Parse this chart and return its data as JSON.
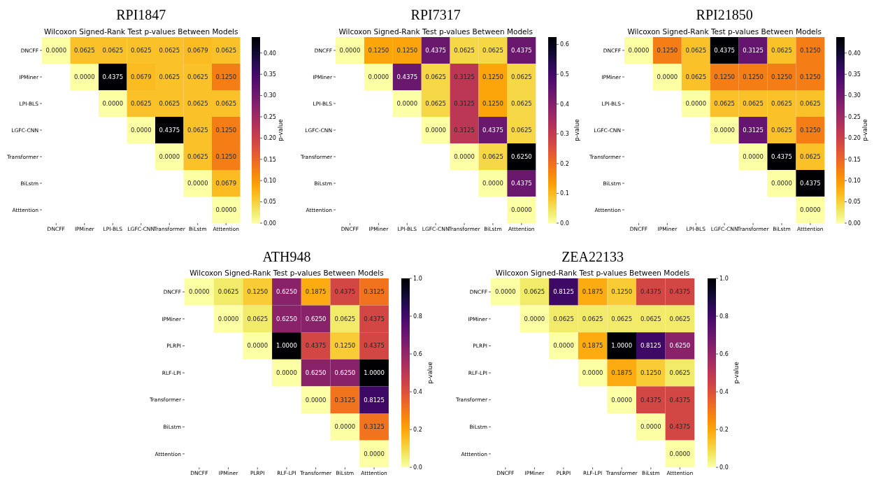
{
  "chart_data": [
    {
      "type": "heatmap",
      "title": "RPI1847",
      "subtitle": "Wilcoxon Signed-Rank Test p-values Between Models",
      "clabel": "p-value",
      "categories": [
        "DNCFF",
        "IPMiner",
        "LPI-BLS",
        "LGFC-CNN",
        "Transformer",
        "BiLstm",
        "Atttention"
      ],
      "y_categories": [
        "DNCFF",
        "IPMiner",
        "LPI-BLS",
        "LGFC-CNN",
        "Transformer",
        "BiLstm",
        "Atttention"
      ],
      "cells": [
        [
          0,
          0.0625,
          0.0625,
          0.0625,
          0.0625,
          0.0679,
          0.0625
        ],
        [
          null,
          0,
          0.4375,
          0.0679,
          0.0625,
          0.0625,
          0.125
        ],
        [
          null,
          null,
          0,
          0.0625,
          0.0625,
          0.0625,
          0.0625
        ],
        [
          null,
          null,
          null,
          0,
          0.4375,
          0.0625,
          0.125
        ],
        [
          null,
          null,
          null,
          null,
          0,
          0.0625,
          0.125
        ],
        [
          null,
          null,
          null,
          null,
          null,
          0,
          0.0679
        ],
        [
          null,
          null,
          null,
          null,
          null,
          null,
          0
        ]
      ],
      "cell_labels": [
        [
          "0.0000",
          "0.0625",
          "0.0625",
          "0.0625",
          "0.0625",
          "0.0679",
          "0.0625"
        ],
        [
          null,
          "0.0000",
          "0.4375",
          "0.0679",
          "0.0625",
          "0.0625",
          "0.1250"
        ],
        [
          null,
          null,
          "0.0000",
          "0.0625",
          "0.0625",
          "0.0625",
          "0.0625"
        ],
        [
          null,
          null,
          null,
          "0.0000",
          "0.4375",
          "0.0625",
          "0.1250"
        ],
        [
          null,
          null,
          null,
          null,
          "0.0000",
          "0.0625",
          "0.1250"
        ],
        [
          null,
          null,
          null,
          null,
          null,
          "0.0000",
          "0.0679"
        ],
        [
          null,
          null,
          null,
          null,
          null,
          null,
          "0.0000"
        ]
      ],
      "clim": [
        0,
        0.4375
      ],
      "cticks": [
        {
          "value": 0,
          "label": "0.00"
        },
        {
          "value": 0.05,
          "label": "0.05"
        },
        {
          "value": 0.1,
          "label": "0.10"
        },
        {
          "value": 0.15,
          "label": "0.15"
        },
        {
          "value": 0.2,
          "label": "0.20"
        },
        {
          "value": 0.25,
          "label": "0.25"
        },
        {
          "value": 0.3,
          "label": "0.30"
        },
        {
          "value": 0.35,
          "label": "0.35"
        },
        {
          "value": 0.4,
          "label": "0.40"
        }
      ]
    },
    {
      "type": "heatmap",
      "title": "RPI7317",
      "subtitle": "Wilcoxon Signed-Rank Test p-values Between Models",
      "clabel": "p-value",
      "categories": [
        "DNCFF",
        "IPMiner",
        "LPI-BLS",
        "LGFC-CNN",
        "Transformer",
        "BiLstm",
        "Atttention"
      ],
      "y_categories": [
        "DNCFF",
        "IPMiner",
        "LPI-BLS",
        "LGFC-CNN",
        "Transformer",
        "BiLstm",
        "Atttention"
      ],
      "cells": [
        [
          0,
          0.125,
          0.125,
          0.4375,
          0.0625,
          0.0625,
          0.4375
        ],
        [
          null,
          0,
          0.4375,
          0.0625,
          0.3125,
          0.125,
          0.0625
        ],
        [
          null,
          null,
          0,
          0.0625,
          0.3125,
          0.125,
          0.0625
        ],
        [
          null,
          null,
          null,
          0,
          0.3125,
          0.4375,
          0.0625
        ],
        [
          null,
          null,
          null,
          null,
          0,
          0.0625,
          0.625
        ],
        [
          null,
          null,
          null,
          null,
          null,
          0,
          0.4375
        ],
        [
          null,
          null,
          null,
          null,
          null,
          null,
          0
        ]
      ],
      "cell_labels": [
        [
          "0.0000",
          "0.1250",
          "0.1250",
          "0.4375",
          "0.0625",
          "0.0625",
          "0.4375"
        ],
        [
          null,
          "0.0000",
          "0.4375",
          "0.0625",
          "0.3125",
          "0.1250",
          "0.0625"
        ],
        [
          null,
          null,
          "0.0000",
          "0.0625",
          "0.3125",
          "0.1250",
          "0.0625"
        ],
        [
          null,
          null,
          null,
          "0.0000",
          "0.3125",
          "0.4375",
          "0.0625"
        ],
        [
          null,
          null,
          null,
          null,
          "0.0000",
          "0.0625",
          "0.6250"
        ],
        [
          null,
          null,
          null,
          null,
          null,
          "0.0000",
          "0.4375"
        ],
        [
          null,
          null,
          null,
          null,
          null,
          null,
          "0.0000"
        ]
      ],
      "clim": [
        0,
        0.625
      ],
      "cticks": [
        {
          "value": 0,
          "label": "0.0"
        },
        {
          "value": 0.1,
          "label": "0.1"
        },
        {
          "value": 0.2,
          "label": "0.2"
        },
        {
          "value": 0.3,
          "label": "0.3"
        },
        {
          "value": 0.4,
          "label": "0.4"
        },
        {
          "value": 0.5,
          "label": "0.5"
        },
        {
          "value": 0.6,
          "label": "0.6"
        }
      ]
    },
    {
      "type": "heatmap",
      "title": "RPI21850",
      "subtitle": "Wilcoxon Signed-Rank Test p-values Between Models",
      "clabel": "p-value",
      "categories": [
        "DNCFF",
        "IPMiner",
        "LPI-BLS",
        "LGFC-CNN",
        "Transformer",
        "BiLstm",
        "Atttention"
      ],
      "y_categories": [
        "DNCFF",
        "IPMiner",
        "LPI-BLS",
        "LGFC-CNN",
        "Transformer",
        "BiLstm",
        "Atttention"
      ],
      "cells": [
        [
          0,
          0.125,
          0.0625,
          0.4375,
          0.3125,
          0.0625,
          0.125
        ],
        [
          null,
          0,
          0.0625,
          0.125,
          0.125,
          0.125,
          0.125
        ],
        [
          null,
          null,
          0,
          0.0625,
          0.0625,
          0.0625,
          0.0625
        ],
        [
          null,
          null,
          null,
          0,
          0.3125,
          0.0625,
          0.125
        ],
        [
          null,
          null,
          null,
          null,
          0,
          0.4375,
          0.0625
        ],
        [
          null,
          null,
          null,
          null,
          null,
          0,
          0.4375
        ],
        [
          null,
          null,
          null,
          null,
          null,
          null,
          0
        ]
      ],
      "cell_labels": [
        [
          "0.0000",
          "0.1250",
          "0.0625",
          "0.4375",
          "0.3125",
          "0.0625",
          "0.1250"
        ],
        [
          null,
          "0.0000",
          "0.0625",
          "0.1250",
          "0.1250",
          "0.1250",
          "0.1250"
        ],
        [
          null,
          null,
          "0.0000",
          "0.0625",
          "0.0625",
          "0.0625",
          "0.0625"
        ],
        [
          null,
          null,
          null,
          "0.0000",
          "0.3125",
          "0.0625",
          "0.1250"
        ],
        [
          null,
          null,
          null,
          null,
          "0.0000",
          "0.4375",
          "0.0625"
        ],
        [
          null,
          null,
          null,
          null,
          null,
          "0.0000",
          "0.4375"
        ],
        [
          null,
          null,
          null,
          null,
          null,
          null,
          "0.0000"
        ]
      ],
      "clim": [
        0,
        0.4375
      ],
      "cticks": [
        {
          "value": 0,
          "label": "0.00"
        },
        {
          "value": 0.05,
          "label": "0.05"
        },
        {
          "value": 0.1,
          "label": "0.10"
        },
        {
          "value": 0.15,
          "label": "0.15"
        },
        {
          "value": 0.2,
          "label": "0.20"
        },
        {
          "value": 0.25,
          "label": "0.25"
        },
        {
          "value": 0.3,
          "label": "0.30"
        },
        {
          "value": 0.35,
          "label": "0.35"
        },
        {
          "value": 0.4,
          "label": "0.40"
        }
      ]
    },
    {
      "type": "heatmap",
      "title": "ATH948",
      "subtitle": "Wilcoxon Signed-Rank Test p-values Between Models",
      "clabel": "p-value",
      "categories": [
        "DNCFF",
        "IPMiner",
        "PLRPI",
        "RLF-LPI",
        "Transformer",
        "BiLstm",
        "Atttention"
      ],
      "y_categories": [
        "DNCFF",
        "IPMiner",
        "PLRPI",
        "RLF-LPI",
        "Transformer",
        "BiLstm",
        "Atttention"
      ],
      "cells": [
        [
          0,
          0.0625,
          0.125,
          0.625,
          0.1875,
          0.4375,
          0.3125
        ],
        [
          null,
          0,
          0.0625,
          0.625,
          0.625,
          0.0625,
          0.4375
        ],
        [
          null,
          null,
          0,
          1,
          0.4375,
          0.125,
          0.4375
        ],
        [
          null,
          null,
          null,
          0,
          0.625,
          0.625,
          1
        ],
        [
          null,
          null,
          null,
          null,
          0,
          0.3125,
          0.8125
        ],
        [
          null,
          null,
          null,
          null,
          null,
          0,
          0.3125
        ],
        [
          null,
          null,
          null,
          null,
          null,
          null,
          0
        ]
      ],
      "cell_labels": [
        [
          "0.0000",
          "0.0625",
          "0.1250",
          "0.6250",
          "0.1875",
          "0.4375",
          "0.3125"
        ],
        [
          null,
          "0.0000",
          "0.0625",
          "0.6250",
          "0.6250",
          "0.0625",
          "0.4375"
        ],
        [
          null,
          null,
          "0.0000",
          "1.0000",
          "0.4375",
          "0.1250",
          "0.4375"
        ],
        [
          null,
          null,
          null,
          "0.0000",
          "0.6250",
          "0.6250",
          "1.0000"
        ],
        [
          null,
          null,
          null,
          null,
          "0.0000",
          "0.3125",
          "0.8125"
        ],
        [
          null,
          null,
          null,
          null,
          null,
          "0.0000",
          "0.3125"
        ],
        [
          null,
          null,
          null,
          null,
          null,
          null,
          "0.0000"
        ]
      ],
      "clim": [
        0,
        1
      ],
      "cticks": [
        {
          "value": 0,
          "label": "0.0"
        },
        {
          "value": 0.2,
          "label": "0.2"
        },
        {
          "value": 0.4,
          "label": "0.4"
        },
        {
          "value": 0.6,
          "label": "0.6"
        },
        {
          "value": 0.8,
          "label": "0.8"
        },
        {
          "value": 1,
          "label": "1.0"
        }
      ]
    },
    {
      "type": "heatmap",
      "title": "ZEA22133",
      "subtitle": "Wilcoxon Signed-Rank Test p-values Between Models",
      "clabel": "p-value",
      "categories": [
        "DNCFF",
        "IPMiner",
        "PLRPI",
        "RLF-LPI",
        "Transformer",
        "BiLstm",
        "Atttention"
      ],
      "y_categories": [
        "DNCFF",
        "IPMiner",
        "PLRPI",
        "RLF-LPI",
        "Transformer",
        "BiLstm",
        "Atttention"
      ],
      "cells": [
        [
          0,
          0.0625,
          0.8125,
          0.1875,
          0.125,
          0.4375,
          0.4375
        ],
        [
          null,
          0,
          0.0625,
          0.0625,
          0.0625,
          0.0625,
          0.0625
        ],
        [
          null,
          null,
          0,
          0.1875,
          1,
          0.8125,
          0.625
        ],
        [
          null,
          null,
          null,
          0,
          0.1875,
          0.125,
          0.0625
        ],
        [
          null,
          null,
          null,
          null,
          0,
          0.4375,
          0.4375
        ],
        [
          null,
          null,
          null,
          null,
          null,
          0,
          0.4375
        ],
        [
          null,
          null,
          null,
          null,
          null,
          null,
          0
        ]
      ],
      "cell_labels": [
        [
          "0.0000",
          "0.0625",
          "0.8125",
          "0.1875",
          "0.1250",
          "0.4375",
          "0.4375"
        ],
        [
          null,
          "0.0000",
          "0.0625",
          "0.0625",
          "0.0625",
          "0.0625",
          "0.0625"
        ],
        [
          null,
          null,
          "0.0000",
          "0.1875",
          "1.0000",
          "0.8125",
          "0.6250"
        ],
        [
          null,
          null,
          null,
          "0.0000",
          "0.1875",
          "0.1250",
          "0.0625"
        ],
        [
          null,
          null,
          null,
          null,
          "0.0000",
          "0.4375",
          "0.4375"
        ],
        [
          null,
          null,
          null,
          null,
          null,
          "0.0000",
          "0.4375"
        ],
        [
          null,
          null,
          null,
          null,
          null,
          null,
          "0.0000"
        ]
      ],
      "clim": [
        0,
        1
      ],
      "cticks": [
        {
          "value": 0,
          "label": "0.0"
        },
        {
          "value": 0.2,
          "label": "0.2"
        },
        {
          "value": 0.4,
          "label": "0.4"
        },
        {
          "value": 0.6,
          "label": "0.6"
        },
        {
          "value": 0.8,
          "label": "0.8"
        },
        {
          "value": 1,
          "label": "1.0"
        }
      ]
    }
  ]
}
